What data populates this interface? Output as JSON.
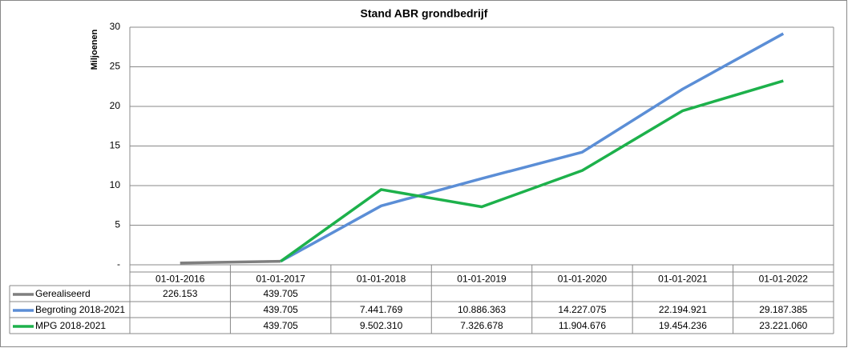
{
  "chart_data": {
    "type": "line",
    "title": "Stand ABR grondbedrijf",
    "y_label": "Miljoenen",
    "categories": [
      "01-01-2016",
      "01-01-2017",
      "01-01-2018",
      "01-01-2019",
      "01-01-2020",
      "01-01-2021",
      "01-01-2022"
    ],
    "series": [
      {
        "name": "Gerealiseerd",
        "color": "#7f7f7f",
        "values": [
          0.226153,
          0.439705,
          null,
          null,
          null,
          null,
          null
        ],
        "value_labels": [
          "226.153",
          "439.705",
          null,
          null,
          null,
          null,
          null
        ]
      },
      {
        "name": "Begroting 2018-2021",
        "color": "#5b8ed6",
        "values": [
          null,
          0.439705,
          7.441769,
          10.886363,
          14.227075,
          22.194921,
          29.187385
        ],
        "value_labels": [
          null,
          "439.705",
          "7.441.769",
          "10.886.363",
          "14.227.075",
          "22.194.921",
          "29.187.385"
        ]
      },
      {
        "name": "MPG 2018-2021",
        "color": "#1db14b",
        "values": [
          null,
          0.439705,
          9.50231,
          7.326678,
          11.904676,
          19.454236,
          23.22106
        ],
        "value_labels": [
          null,
          "439.705",
          "9.502.310",
          "7.326.678",
          "11.904.676",
          "19.454.236",
          "23.221.060"
        ]
      }
    ],
    "ylim": [
      0,
      30
    ],
    "yticks": [
      {
        "value": 0,
        "label": "-"
      },
      5,
      10,
      15,
      20,
      25,
      30
    ],
    "grid": true
  }
}
